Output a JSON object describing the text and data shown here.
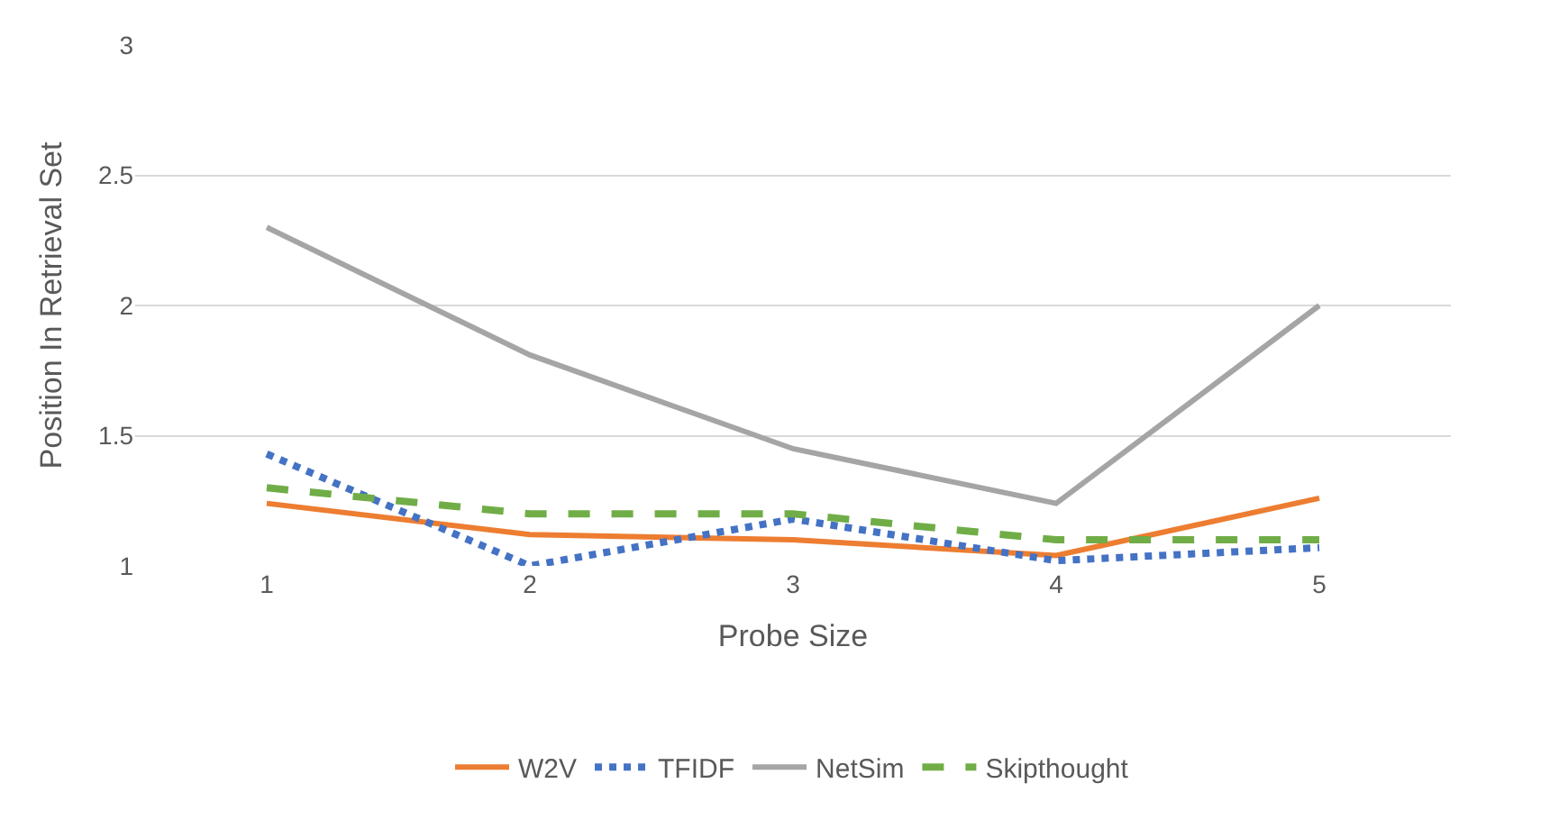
{
  "chart_data": {
    "type": "line",
    "xlabel": "Probe Size",
    "ylabel": "Position In Retrieval Set",
    "categories": [
      "1",
      "2",
      "3",
      "4",
      "5"
    ],
    "series": [
      {
        "name": "W2V",
        "color": "#ed7d31",
        "values": [
          1.24,
          1.12,
          1.1,
          1.04,
          1.26
        ],
        "line_style": "solid"
      },
      {
        "name": "TFIDF",
        "color": "#4472c4",
        "values": [
          1.43,
          1.0,
          1.18,
          1.02,
          1.07
        ],
        "line_style": "dotted"
      },
      {
        "name": "NetSim",
        "color": "#a5a5a5",
        "values": [
          2.3,
          1.81,
          1.45,
          1.24,
          2.0
        ],
        "line_style": "solid"
      },
      {
        "name": "Skipthought",
        "color": "#70ad47",
        "values": [
          1.3,
          1.2,
          1.2,
          1.1,
          1.1
        ],
        "line_style": "dashed"
      }
    ],
    "ylim": [
      1,
      3
    ],
    "yticks": [
      1,
      1.5,
      2,
      2.5,
      3
    ],
    "grid": "y",
    "legend": "bottom",
    "marker": "none"
  }
}
